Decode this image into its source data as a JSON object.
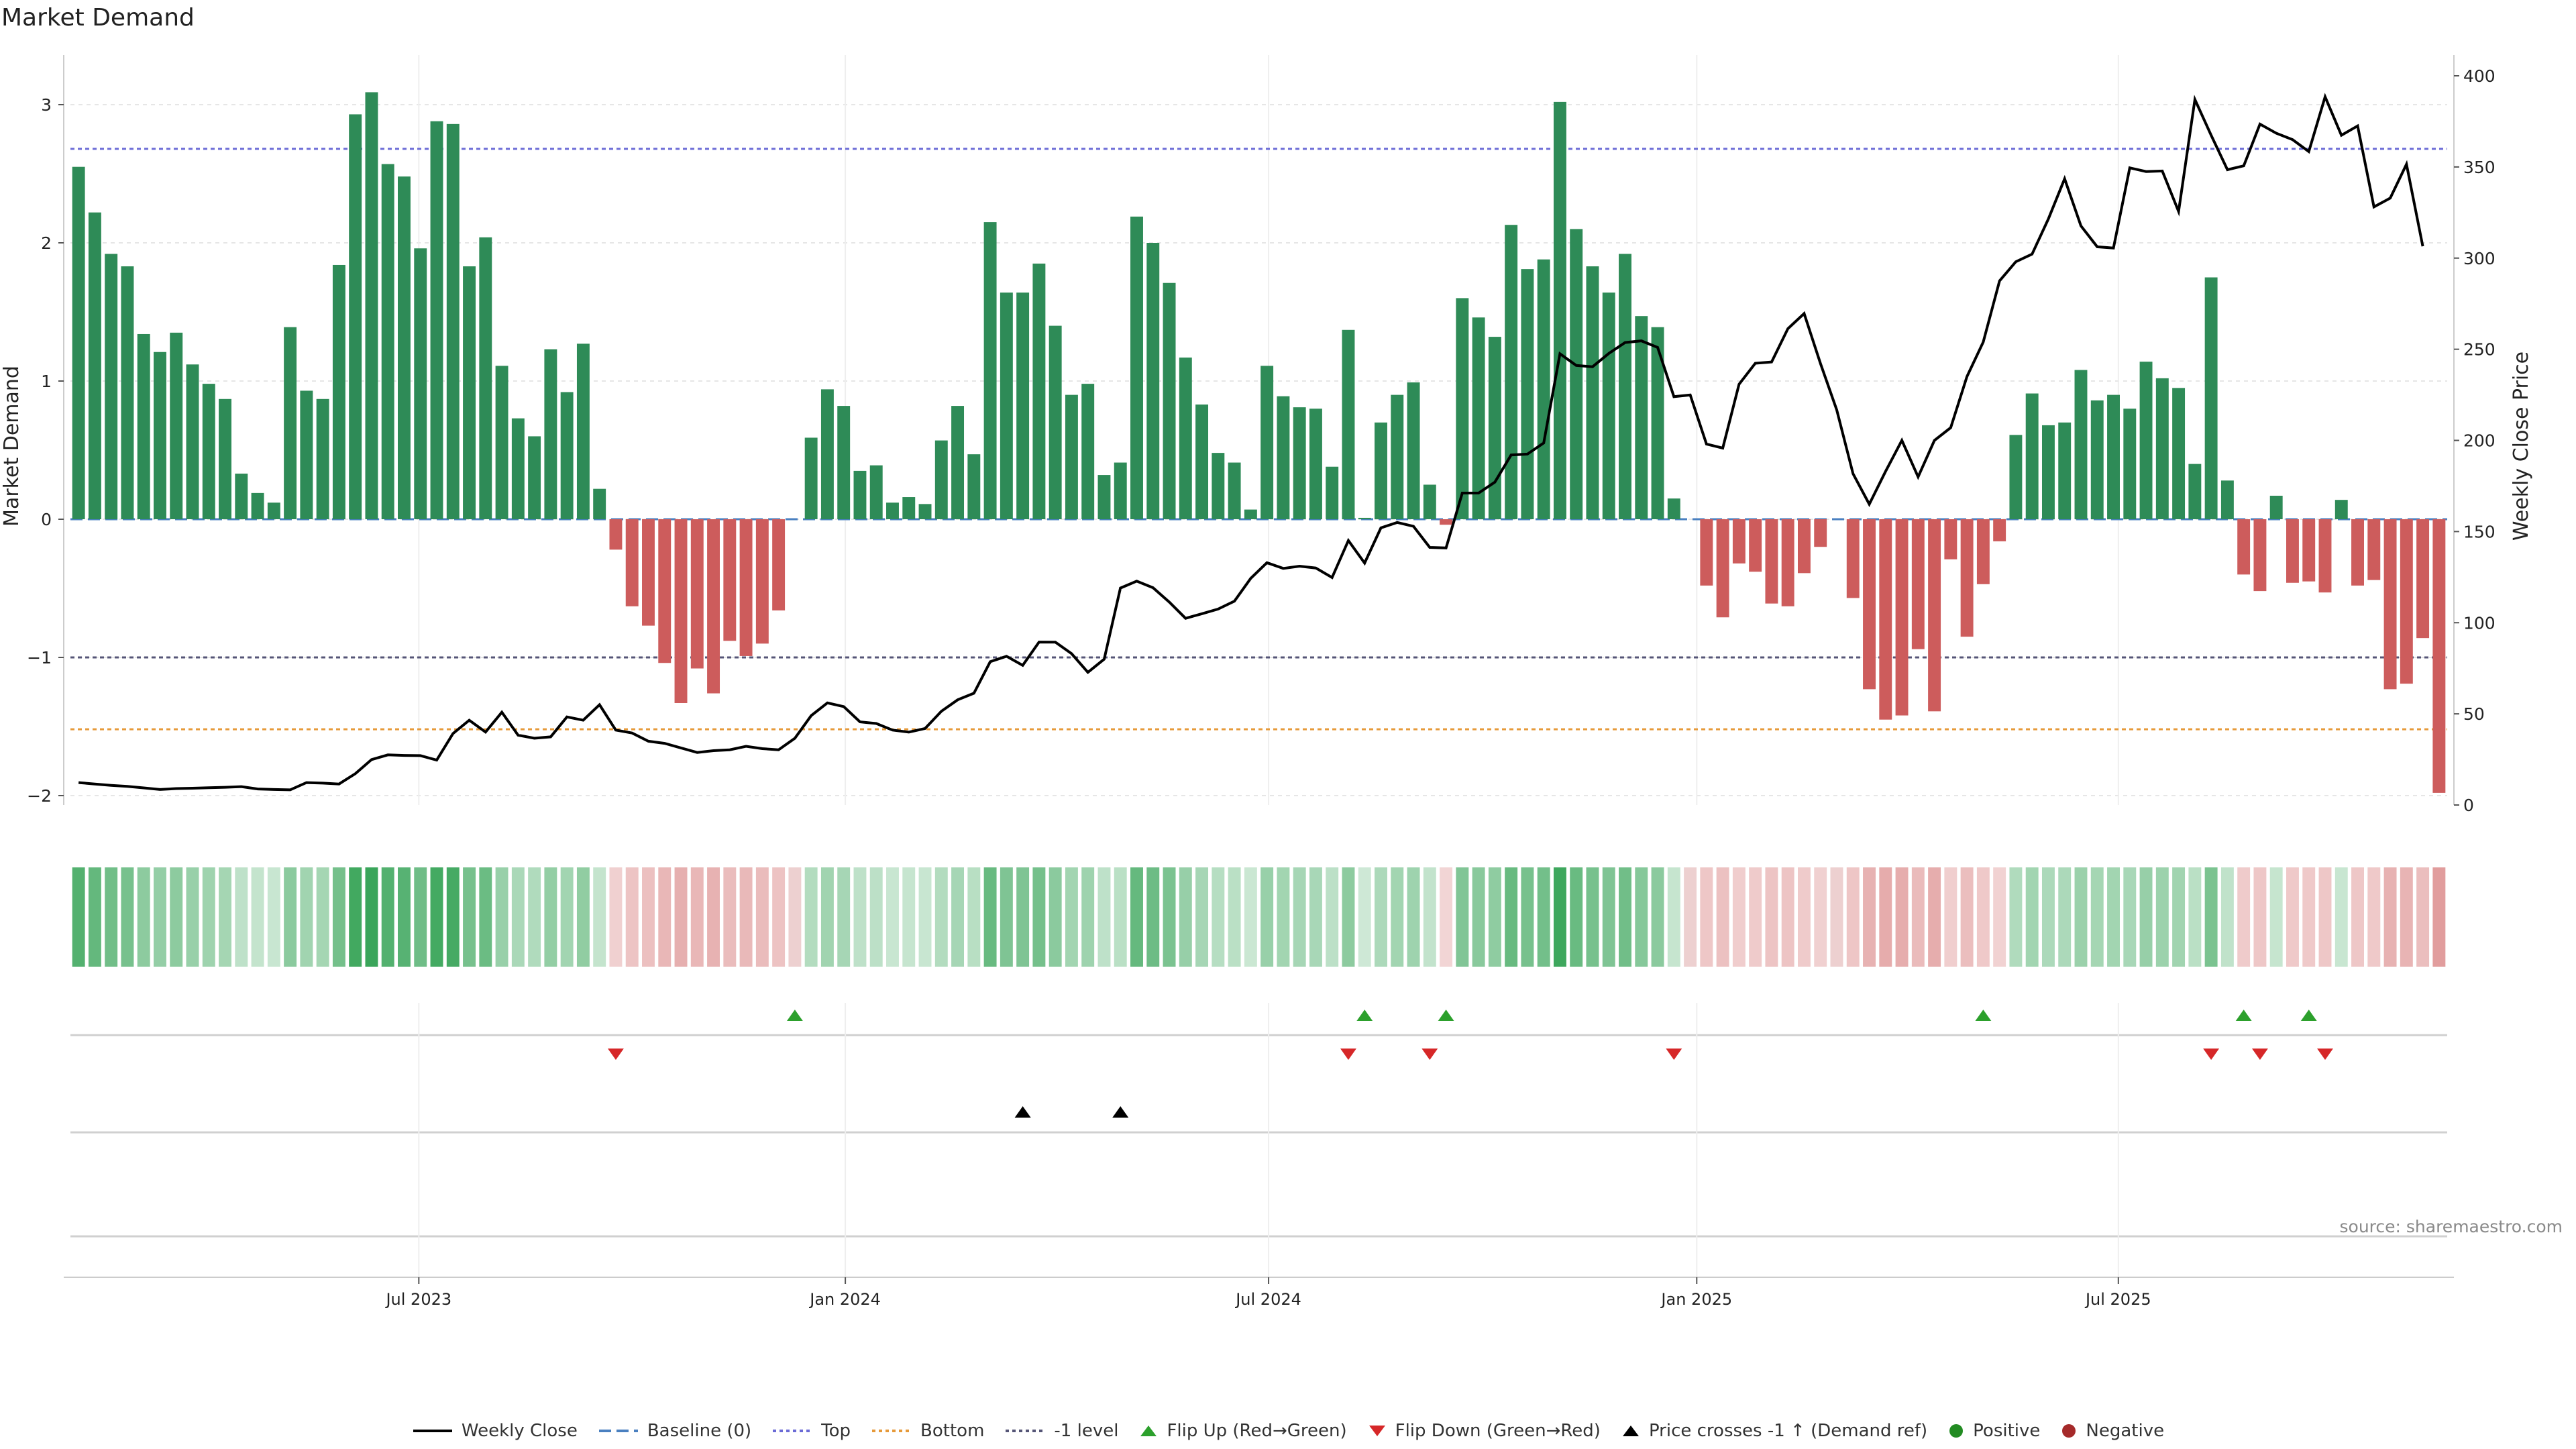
{
  "title": "Market Demand",
  "source": "source: sharemaestro.com",
  "colors": {
    "positive": "#2e8b57",
    "negative": "#cd5c5c",
    "price": "#000000",
    "top": "#6b6bd6",
    "bottom": "#e69a3a",
    "minus1": "#555577",
    "flip_up": "#2ca02c",
    "flip_down": "#d62728"
  },
  "legend": [
    {
      "label": "Weekly Close",
      "icon": "solid-line-icon"
    },
    {
      "label": "Baseline (0)",
      "icon": "dashed-line-icon"
    },
    {
      "label": "Top",
      "icon": "dotted-line-icon"
    },
    {
      "label": "Bottom",
      "icon": "dotted-line-icon"
    },
    {
      "label": "-1 level",
      "icon": "dotted-line-icon"
    },
    {
      "label": "Flip Up (Red→Green)",
      "icon": "triangle-up-icon"
    },
    {
      "label": "Flip Down (Green→Red)",
      "icon": "triangle-down-icon"
    },
    {
      "label": "Price crosses -1 ↑ (Demand ref)",
      "icon": "triangle-up-icon"
    },
    {
      "label": "Positive",
      "icon": "circle-icon"
    },
    {
      "label": "Negative",
      "icon": "circle-icon"
    }
  ],
  "chart_data": {
    "type": "bar",
    "title": "Market Demand",
    "ylabel": "Market Demand",
    "y2label": "Weekly Close Price",
    "ylim": [
      -2.1,
      3.4
    ],
    "yticks": [
      -2,
      -1,
      0,
      1,
      2,
      3
    ],
    "ytick_labels": [
      "−2",
      "−1",
      "0",
      "1",
      "2",
      "3"
    ],
    "y2lim": [
      0,
      400
    ],
    "y2ticks": [
      0,
      50,
      100,
      150,
      200,
      250,
      300,
      350,
      400
    ],
    "y2tick_labels": [
      "0",
      "50",
      "100",
      "150",
      "200",
      "250",
      "300",
      "350",
      "400"
    ],
    "x_start_week": 0,
    "x_ticks": [
      {
        "label": "Jul 2023",
        "week": 21.4
      },
      {
        "label": "Jan 2024",
        "week": 47.6
      },
      {
        "label": "Jul 2024",
        "week": 73.6
      },
      {
        "label": "Jan 2025",
        "week": 99.9
      },
      {
        "label": "Jul 2025",
        "week": 125.8
      }
    ],
    "levels": {
      "baseline": 0,
      "top": 2.68,
      "bottom": -1.52,
      "minus1": -1
    },
    "demand": [
      2.55,
      2.22,
      1.92,
      1.83,
      1.34,
      1.21,
      1.35,
      1.12,
      0.98,
      0.87,
      0.33,
      0.19,
      0.12,
      1.39,
      0.93,
      0.87,
      1.84,
      2.93,
      3.09,
      2.57,
      2.48,
      1.96,
      2.88,
      2.86,
      1.83,
      2.04,
      1.11,
      0.73,
      0.6,
      1.23,
      0.92,
      1.27,
      0.22,
      -0.22,
      -0.63,
      -0.77,
      -1.04,
      -1.33,
      -1.08,
      -1.26,
      -0.88,
      -0.99,
      -0.9,
      -0.66,
      0,
      0.59,
      0.94,
      0.82,
      0.35,
      0.39,
      0.12,
      0.16,
      0.11,
      0.57,
      0.82,
      0.47,
      2.15,
      1.64,
      1.64,
      1.85,
      1.4,
      0.9,
      0.98,
      0.32,
      0.41,
      2.19,
      2.0,
      1.71,
      1.17,
      0.83,
      0.48,
      0.41,
      0.07,
      1.11,
      0.89,
      0.81,
      0.8,
      0.38,
      1.37,
      0.01,
      0.7,
      0.9,
      0.99,
      0.25,
      -0.04,
      1.6,
      1.46,
      1.32,
      2.13,
      1.81,
      1.88,
      3.02,
      2.1,
      1.83,
      1.64,
      1.92,
      1.47,
      1.39,
      0.15,
      0,
      -0.48,
      -0.71,
      -0.32,
      -0.38,
      -0.61,
      -0.63,
      -0.39,
      -0.2,
      0,
      -0.57,
      -1.23,
      -1.45,
      -1.42,
      -0.94,
      -1.39,
      -0.29,
      -0.85,
      -0.47,
      -0.16,
      0.61,
      0.91,
      0.68,
      0.7,
      1.08,
      0.86,
      0.9,
      0.8,
      1.14,
      1.02,
      0.95,
      0.4,
      1.75,
      0.28,
      -0.4,
      -0.52,
      0.17,
      -0.46,
      -0.45,
      -0.53,
      0.14,
      -0.48,
      -0.44,
      -1.23,
      -1.19,
      -0.86,
      -1.98
    ],
    "weekly_close": [
      12.3,
      11.5,
      10.8,
      10.2,
      9.4,
      8.5,
      9.0,
      9.2,
      9.5,
      9.7,
      10.1,
      8.8,
      8.5,
      8.3,
      12.3,
      12.0,
      11.5,
      17.2,
      24.9,
      27.5,
      27.2,
      27.1,
      24.6,
      39.2,
      46.5,
      40.0,
      50.9,
      38.3,
      36.6,
      37.4,
      48.3,
      46.5,
      55.0,
      41.1,
      39.5,
      35.0,
      33.8,
      31.3,
      28.8,
      29.8,
      30.3,
      32.2,
      30.9,
      30.3,
      36.6,
      49.0,
      56.0,
      54.0,
      45.6,
      44.7,
      41.1,
      40.0,
      42.0,
      51.4,
      57.7,
      61.3,
      78.6,
      81.6,
      76.6,
      89.4,
      89.3,
      83.0,
      72.8,
      80.0,
      119.0,
      122.8,
      119.2,
      111.3,
      102.4,
      104.9,
      107.5,
      111.8,
      124.3,
      132.9,
      129.8,
      131.0,
      130.0,
      124.8,
      145.1,
      132.7,
      152.0,
      155.0,
      152.9,
      141.3,
      141.0,
      171.1,
      171.1,
      177.1,
      192.0,
      192.5,
      198.6,
      247.5,
      241.1,
      240.4,
      247.7,
      253.7,
      254.6,
      251.0,
      224.0,
      224.9,
      198.0,
      195.8,
      230.8,
      242.3,
      243.0,
      261.3,
      269.6,
      242.2,
      216.7,
      181.7,
      165.0,
      183.0,
      200.0,
      180.0,
      200.0,
      207.0,
      235.0,
      254.0,
      287.5,
      298.0,
      302.2,
      321.5,
      343.5,
      317.7,
      306.2,
      305.5,
      349.5,
      347.5,
      347.8,
      325.6,
      387.0,
      367.4,
      348.5,
      350.6,
      373.5,
      368.5,
      365.0,
      358.4,
      388.5,
      367.4,
      372.5,
      328.1,
      332.9,
      351.5,
      306.5
    ],
    "intensity_strip": "per-week demand heat strip, green = positive, red = negative",
    "flip_up_weeks": [
      44,
      79,
      84,
      117,
      133,
      137
    ],
    "flip_down_weeks": [
      33,
      78,
      83,
      98,
      131,
      134,
      138
    ],
    "price_cross_weeks": [
      58,
      64
    ]
  }
}
